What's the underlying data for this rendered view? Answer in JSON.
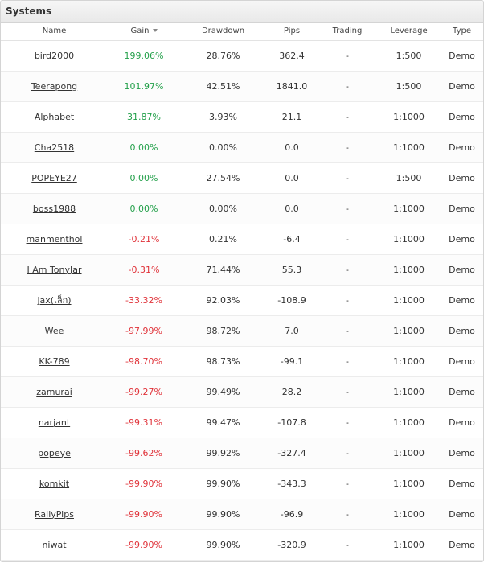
{
  "panel": {
    "title": "Systems"
  },
  "table": {
    "headers": {
      "name": "Name",
      "gain": "Gain",
      "drawdown": "Drawdown",
      "pips": "Pips",
      "trading": "Trading",
      "leverage": "Leverage",
      "type": "Type"
    },
    "sort_icon": "sort-desc-icon",
    "colors": {
      "positive": "#23a04a",
      "negative": "#e0333a"
    },
    "rows": [
      {
        "name": "bird2000",
        "gain": "199.06%",
        "drawdown": "28.76%",
        "pips": "362.4",
        "trading": "-",
        "leverage": "1:500",
        "type": "Demo",
        "sign": "pos"
      },
      {
        "name": "Teerapong",
        "gain": "101.97%",
        "drawdown": "42.51%",
        "pips": "1841.0",
        "trading": "-",
        "leverage": "1:500",
        "type": "Demo",
        "sign": "pos"
      },
      {
        "name": "Alphabet",
        "gain": "31.87%",
        "drawdown": "3.93%",
        "pips": "21.1",
        "trading": "-",
        "leverage": "1:1000",
        "type": "Demo",
        "sign": "pos"
      },
      {
        "name": "Cha2518",
        "gain": "0.00%",
        "drawdown": "0.00%",
        "pips": "0.0",
        "trading": "-",
        "leverage": "1:1000",
        "type": "Demo",
        "sign": "pos"
      },
      {
        "name": "POPEYE27",
        "gain": "0.00%",
        "drawdown": "27.54%",
        "pips": "0.0",
        "trading": "-",
        "leverage": "1:500",
        "type": "Demo",
        "sign": "pos"
      },
      {
        "name": "boss1988",
        "gain": "0.00%",
        "drawdown": "0.00%",
        "pips": "0.0",
        "trading": "-",
        "leverage": "1:1000",
        "type": "Demo",
        "sign": "pos"
      },
      {
        "name": "manmenthol",
        "gain": "-0.21%",
        "drawdown": "0.21%",
        "pips": "-6.4",
        "trading": "-",
        "leverage": "1:1000",
        "type": "Demo",
        "sign": "neg"
      },
      {
        "name": "I Am TonyJar",
        "gain": "-0.31%",
        "drawdown": "71.44%",
        "pips": "55.3",
        "trading": "-",
        "leverage": "1:1000",
        "type": "Demo",
        "sign": "neg"
      },
      {
        "name": "jax(เล็ก)",
        "gain": "-33.32%",
        "drawdown": "92.03%",
        "pips": "-108.9",
        "trading": "-",
        "leverage": "1:1000",
        "type": "Demo",
        "sign": "neg"
      },
      {
        "name": "Wee",
        "gain": "-97.99%",
        "drawdown": "98.72%",
        "pips": "7.0",
        "trading": "-",
        "leverage": "1:1000",
        "type": "Demo",
        "sign": "neg"
      },
      {
        "name": "KK-789",
        "gain": "-98.70%",
        "drawdown": "98.73%",
        "pips": "-99.1",
        "trading": "-",
        "leverage": "1:1000",
        "type": "Demo",
        "sign": "neg"
      },
      {
        "name": "zamurai",
        "gain": "-99.27%",
        "drawdown": "99.49%",
        "pips": "28.2",
        "trading": "-",
        "leverage": "1:1000",
        "type": "Demo",
        "sign": "neg"
      },
      {
        "name": "narjant",
        "gain": "-99.31%",
        "drawdown": "99.47%",
        "pips": "-107.8",
        "trading": "-",
        "leverage": "1:1000",
        "type": "Demo",
        "sign": "neg"
      },
      {
        "name": "popeye",
        "gain": "-99.62%",
        "drawdown": "99.92%",
        "pips": "-327.4",
        "trading": "-",
        "leverage": "1:1000",
        "type": "Demo",
        "sign": "neg"
      },
      {
        "name": "komkit",
        "gain": "-99.90%",
        "drawdown": "99.90%",
        "pips": "-343.3",
        "trading": "-",
        "leverage": "1:1000",
        "type": "Demo",
        "sign": "neg"
      },
      {
        "name": "RallyPips",
        "gain": "-99.90%",
        "drawdown": "99.90%",
        "pips": "-96.9",
        "trading": "-",
        "leverage": "1:1000",
        "type": "Demo",
        "sign": "neg"
      },
      {
        "name": "niwat",
        "gain": "-99.90%",
        "drawdown": "99.90%",
        "pips": "-320.9",
        "trading": "-",
        "leverage": "1:1000",
        "type": "Demo",
        "sign": "neg"
      }
    ]
  }
}
